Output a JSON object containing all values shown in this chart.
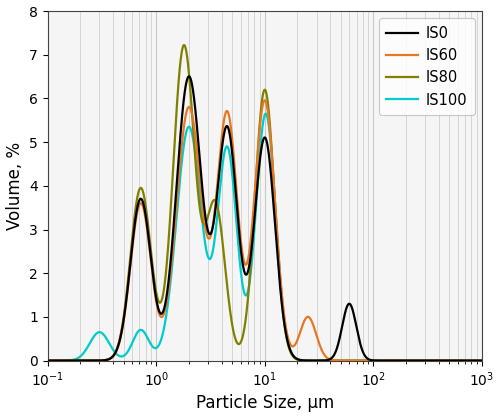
{
  "title": "",
  "xlabel": "Particle Size, μm",
  "ylabel": "Volume, %",
  "xlim": [
    0.1,
    1000
  ],
  "ylim": [
    0,
    8
  ],
  "yticks": [
    0,
    1,
    2,
    3,
    4,
    5,
    6,
    7,
    8
  ],
  "series": {
    "IS0": {
      "color": "#000000",
      "lw": 1.6
    },
    "IS60": {
      "color": "#E87722",
      "lw": 1.6
    },
    "IS80": {
      "color": "#808000",
      "lw": 1.6
    },
    "IS100": {
      "color": "#00CCCC",
      "lw": 1.6
    }
  },
  "legend_loc": "upper right",
  "grid_color": "#c8c8c8",
  "bg_color": "#f5f5f5"
}
